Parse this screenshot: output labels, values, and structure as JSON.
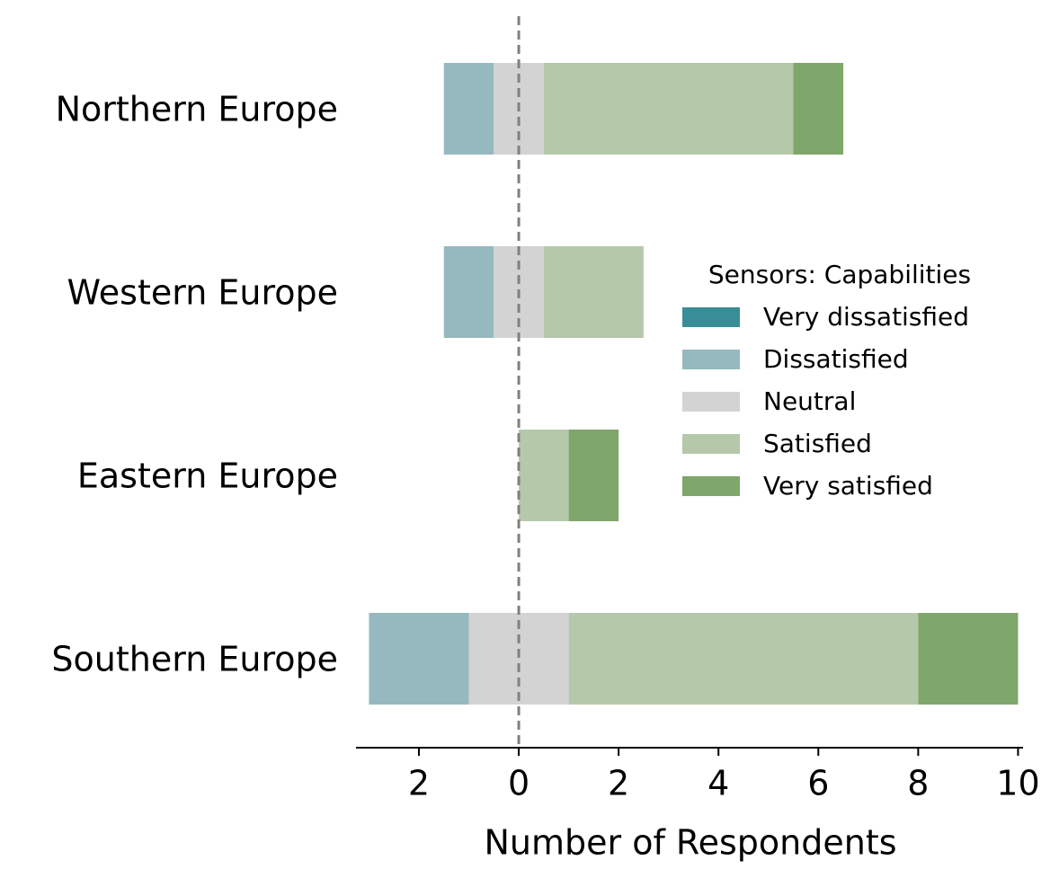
{
  "chart_data": {
    "type": "diverging-bar",
    "xlabel": "Number of Respondents",
    "legend_title": "Sensors: Capabilities",
    "legend_position": "right",
    "categories": [
      "Northern Europe",
      "Western Europe",
      "Eastern Europe",
      "Southern Europe"
    ],
    "series": [
      {
        "name": "Very dissatisfied",
        "color": "#388e96",
        "values": [
          0,
          0,
          0,
          0
        ]
      },
      {
        "name": "Dissatisfied",
        "color": "#96b9c0",
        "values": [
          1,
          1,
          0,
          2
        ]
      },
      {
        "name": "Neutral",
        "color": "#d3d3d3",
        "values": [
          1,
          1,
          0,
          2
        ]
      },
      {
        "name": "Satisfied",
        "color": "#b5c9aa",
        "values": [
          5,
          2,
          1,
          7
        ]
      },
      {
        "name": "Very satisfied",
        "color": "#7fa66b",
        "values": [
          1,
          0,
          1,
          2
        ]
      }
    ],
    "xlim": [
      -3.26,
      10.1
    ],
    "xticks": [
      {
        "value": -2,
        "label": "2"
      },
      0,
      2,
      4,
      6,
      8,
      10
    ]
  }
}
